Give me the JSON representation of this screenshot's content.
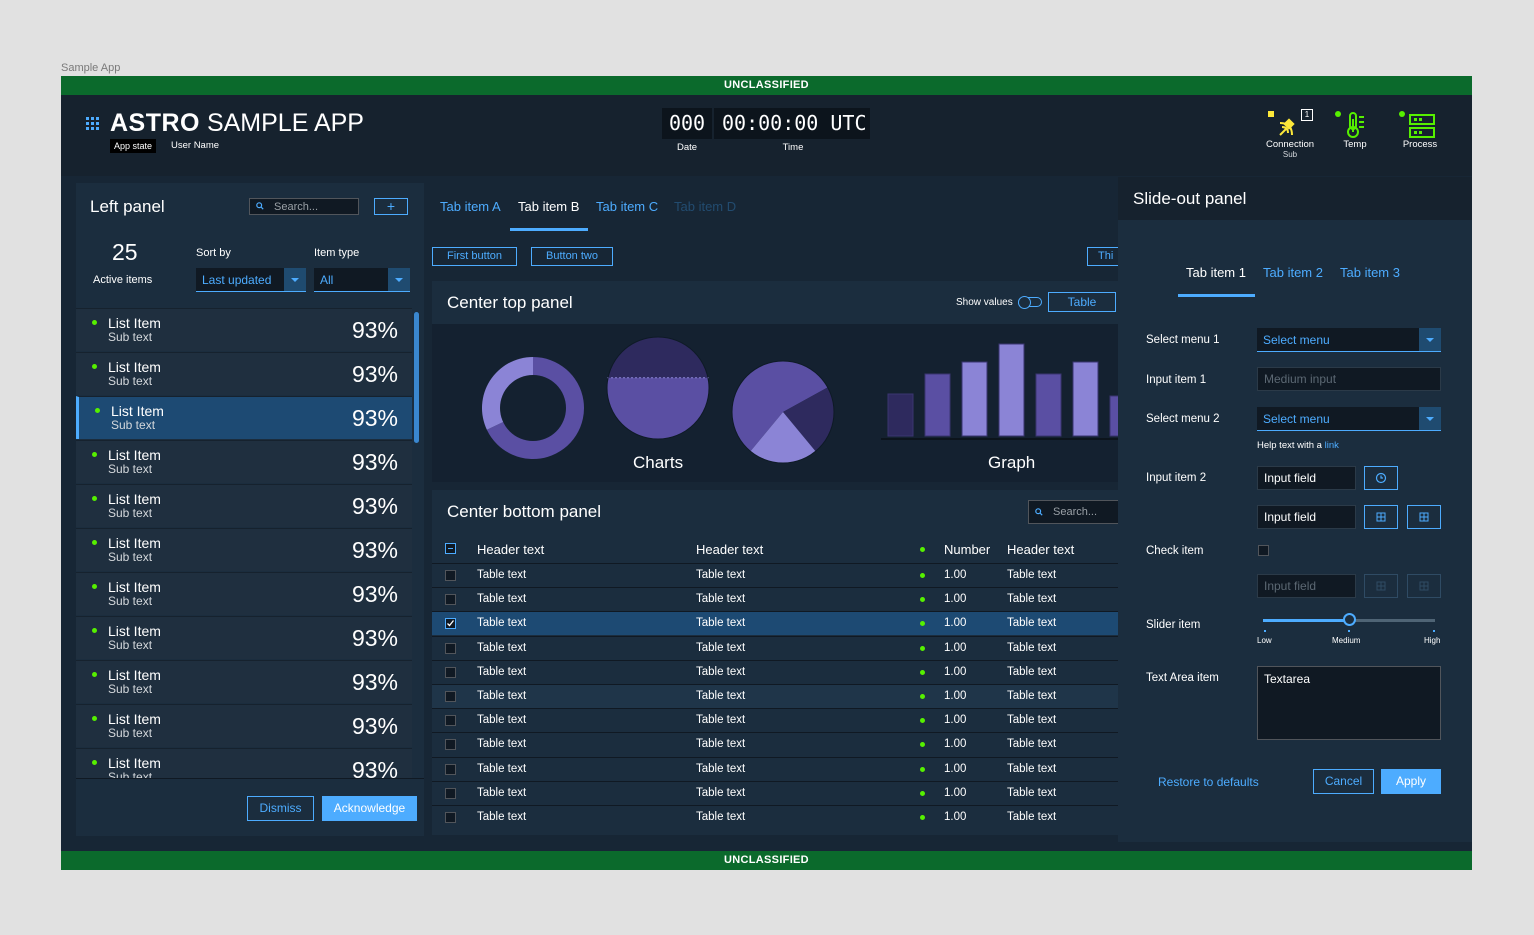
{
  "frame_title": "Sample App",
  "classification": "UNCLASSIFIED",
  "header": {
    "app_name_bold": "ASTRO",
    "app_name_rest": "SAMPLE APP",
    "app_state": "App state",
    "user_name": "User Name",
    "clock": {
      "date": "000",
      "time": "00:00:00",
      "zone": "UTC",
      "date_label": "Date",
      "time_label": "Time"
    },
    "monitors": [
      {
        "label": "Connection",
        "sub": "Sub",
        "icon": "satellite-icon",
        "badge": "1",
        "status": "caution"
      },
      {
        "label": "Temp",
        "sub": "",
        "icon": "thermometer-icon",
        "status": "normal"
      },
      {
        "label": "Process",
        "sub": "",
        "icon": "server-icon",
        "status": "normal"
      }
    ]
  },
  "left_panel": {
    "title": "Left panel",
    "search_placeholder": "Search...",
    "add_label": "+",
    "count": "25",
    "count_label": "Active items",
    "sort_label": "Sort by",
    "sort_value": "Last updated",
    "type_label": "Item type",
    "type_value": "All",
    "items": [
      {
        "title": "List Item",
        "sub": "Sub text",
        "value": "93%"
      },
      {
        "title": "List Item",
        "sub": "Sub text",
        "value": "93%"
      },
      {
        "title": "List Item",
        "sub": "Sub text",
        "value": "93%",
        "selected": true
      },
      {
        "title": "List Item",
        "sub": "Sub text",
        "value": "93%"
      },
      {
        "title": "List Item",
        "sub": "Sub text",
        "value": "93%"
      },
      {
        "title": "List Item",
        "sub": "Sub text",
        "value": "93%"
      },
      {
        "title": "List Item",
        "sub": "Sub text",
        "value": "93%"
      },
      {
        "title": "List Item",
        "sub": "Sub text",
        "value": "93%"
      },
      {
        "title": "List Item",
        "sub": "Sub text",
        "value": "93%"
      },
      {
        "title": "List Item",
        "sub": "Sub text",
        "value": "93%"
      },
      {
        "title": "List Item",
        "sub": "Sub text",
        "value": "93%"
      }
    ],
    "dismiss_label": "Dismiss",
    "acknowledge_label": "Acknowledge"
  },
  "center": {
    "tabs": [
      "Tab item A",
      "Tab item B",
      "Tab item C",
      "Tab item D"
    ],
    "active_tab": "Tab item B",
    "buttons": [
      "First button",
      "Button two",
      "Thi"
    ],
    "top_panel": {
      "title": "Center top panel",
      "show_values_label": "Show values",
      "table_button": "Table",
      "charts_caption": "Charts",
      "graph_caption": "Graph"
    },
    "bottom_panel": {
      "title": "Center bottom panel",
      "search_placeholder": "Search...",
      "headers": [
        "Header text",
        "Header text",
        "Number",
        "Header text"
      ],
      "rows": [
        {
          "c1": "Table text",
          "c2": "Table text",
          "num": "1.00",
          "c4": "Table text",
          "checked": false
        },
        {
          "c1": "Table text",
          "c2": "Table text",
          "num": "1.00",
          "c4": "Table text",
          "checked": false
        },
        {
          "c1": "Table text",
          "c2": "Table text",
          "num": "1.00",
          "c4": "Table text",
          "checked": true
        },
        {
          "c1": "Table text",
          "c2": "Table text",
          "num": "1.00",
          "c4": "Table text",
          "checked": false
        },
        {
          "c1": "Table text",
          "c2": "Table text",
          "num": "1.00",
          "c4": "Table text",
          "checked": false
        },
        {
          "c1": "Table text",
          "c2": "Table text",
          "num": "1.00",
          "c4": "Table text",
          "checked": false
        },
        {
          "c1": "Table text",
          "c2": "Table text",
          "num": "1.00",
          "c4": "Table text",
          "checked": false
        },
        {
          "c1": "Table text",
          "c2": "Table text",
          "num": "1.00",
          "c4": "Table text",
          "checked": false
        },
        {
          "c1": "Table text",
          "c2": "Table text",
          "num": "1.00",
          "c4": "Table text",
          "checked": false
        },
        {
          "c1": "Table text",
          "c2": "Table text",
          "num": "1.00",
          "c4": "Table text",
          "checked": false
        },
        {
          "c1": "Table text",
          "c2": "Table text",
          "num": "1.00",
          "c4": "Table text",
          "checked": false
        }
      ]
    }
  },
  "chart_data": [
    {
      "type": "pie",
      "chart": "donut",
      "values": [
        68,
        32
      ]
    },
    {
      "type": "pie",
      "chart": "half-filled circle",
      "values": [
        60,
        40
      ]
    },
    {
      "type": "pie",
      "values": [
        56,
        22,
        22
      ]
    },
    {
      "type": "bar",
      "values": [
        42,
        62,
        74,
        92,
        62,
        74,
        40
      ]
    }
  ],
  "slideout": {
    "title": "Slide-out panel",
    "tabs": [
      "Tab item 1",
      "Tab item 2",
      "Tab item 3"
    ],
    "select1_label": "Select menu 1",
    "select1_value": "Select menu",
    "input1_label": "Input item 1",
    "input1_placeholder": "Medium input",
    "select2_label": "Select menu 2",
    "select2_value": "Select menu",
    "help_text": "Help text with a",
    "help_link": "link",
    "input2_label": "Input item 2",
    "input_field": "Input field",
    "check_label": "Check item",
    "slider_label": "Slider item",
    "slider_value": 0.5,
    "slider_ticks": [
      "Low",
      "Medium",
      "High"
    ],
    "textarea_label": "Text Area item",
    "textarea_value": "Textarea",
    "restore_label": "Restore to defaults",
    "cancel_label": "Cancel",
    "apply_label": "Apply"
  },
  "colors": {
    "accent": "#4dacff",
    "status_normal": "#56f000",
    "status_caution": "#fce83a",
    "classification": "#0b6a2c",
    "chart_purple": "#5a4fa3",
    "chart_light": "#8b84d6",
    "chart_dark": "#2e2a5e"
  }
}
